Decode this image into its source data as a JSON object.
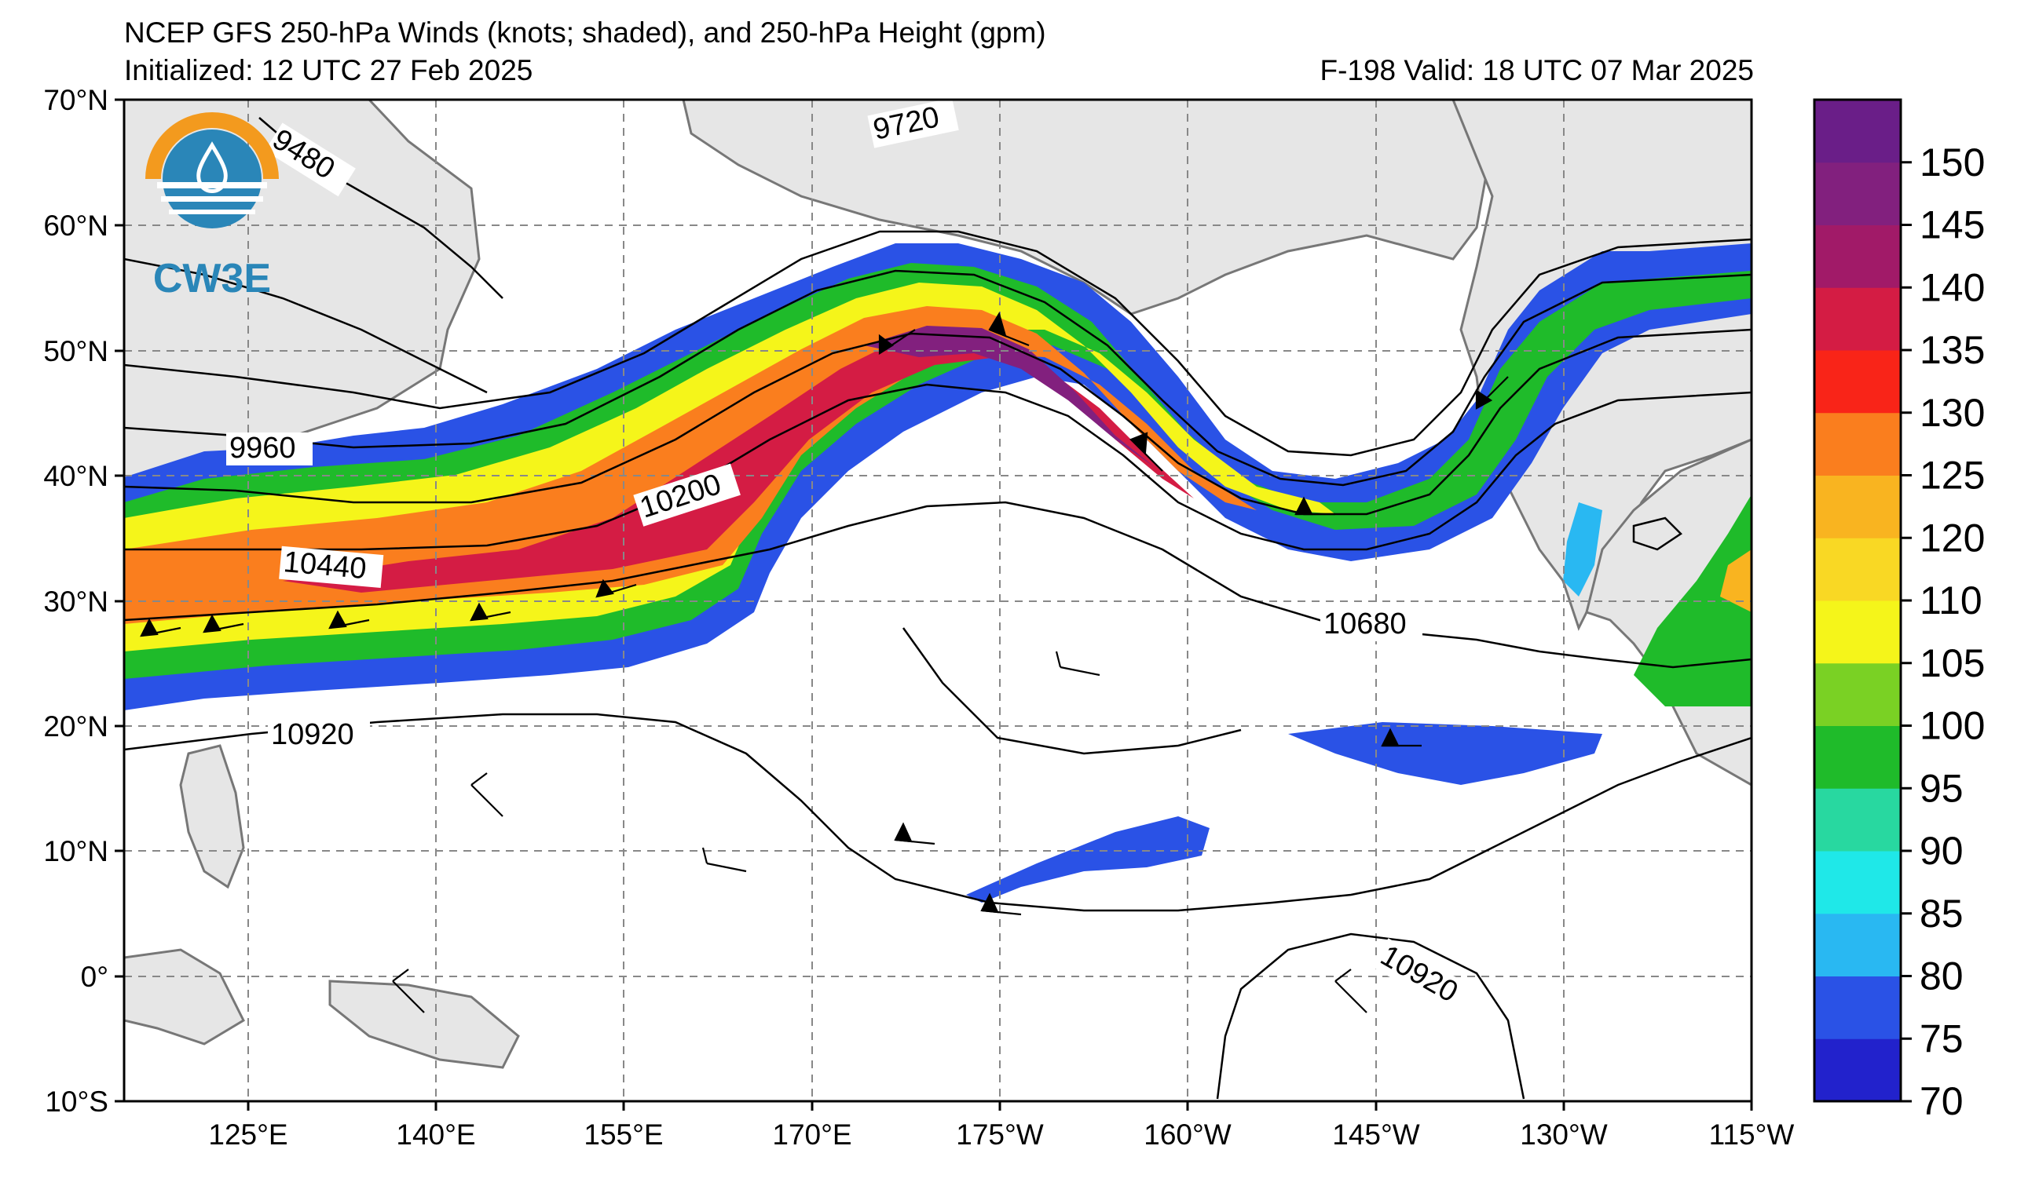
{
  "header": {
    "title": "NCEP GFS 250-hPa Winds (knots; shaded), and 250-hPa Height (gpm)",
    "initialized": "Initialized: 12 UTC 27 Feb 2025",
    "forecast": "F-198  Valid: 18 UTC 07 Mar 2025"
  },
  "logo": {
    "text": "CW3E",
    "colors": {
      "orange": "#f39a1e",
      "blue": "#2a86b8"
    }
  },
  "lat_labels": [
    "70°N",
    "60°N",
    "50°N",
    "40°N",
    "30°N",
    "20°N",
    "10°N",
    "0°",
    "10°S"
  ],
  "lon_labels": [
    "125°E",
    "140°E",
    "155°E",
    "170°E",
    "175°W",
    "160°W",
    "145°W",
    "130°W",
    "115°W"
  ],
  "contour_labels": [
    "9480",
    "9720",
    "9960",
    "10200",
    "10440",
    "10680",
    "10920",
    "10920"
  ],
  "colorbar": {
    "ticks": [
      "150",
      "145",
      "140",
      "135",
      "130",
      "125",
      "120",
      "110",
      "105",
      "100",
      "95",
      "90",
      "85",
      "80",
      "75",
      "70"
    ],
    "colors": [
      "#2222cc",
      "#2a52e6",
      "#29b8f2",
      "#1fe8e8",
      "#28d8a0",
      "#1fbb2a",
      "#7ad124",
      "#f5f51a",
      "#f9d824",
      "#f9b420",
      "#fa7e1e",
      "#f92418",
      "#d41c44",
      "#a11a68",
      "#82207e",
      "#6a1e88"
    ]
  },
  "map_colors": {
    "land": "#e6e6e6",
    "coast": "#777777",
    "grid": "#888888"
  }
}
